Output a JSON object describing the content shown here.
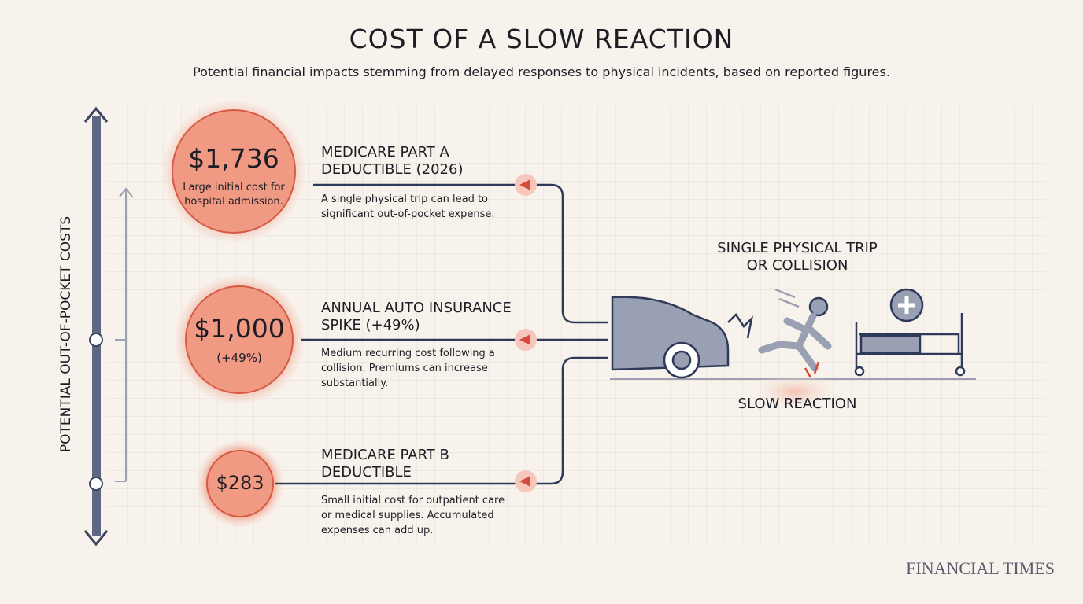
{
  "header": {
    "title": "COST OF A SLOW REACTION",
    "subtitle": "Potential financial impacts stemming from delayed responses to physical incidents, based on reported figures."
  },
  "axis_label": "POTENTIAL OUT-OF-POCKET COSTS",
  "items": [
    {
      "amount": "$1,736",
      "note": "Large initial cost for hospital admission.",
      "heading": "MEDICARE PART A DEDUCTIBLE (2026)",
      "description": "A single physical trip can lead to significant out-of-pocket expense."
    },
    {
      "amount": "$1,000",
      "note": "(+49%)",
      "heading": "ANNUAL AUTO INSURANCE SPIKE (+49%)",
      "description": "Medium recurring cost following a collision. Premiums can increase substantially."
    },
    {
      "amount": "$283",
      "heading": "MEDICARE PART B DEDUCTIBLE",
      "description": "Small initial cost for outpatient care or medical supplies. Accumulated expenses can add up."
    }
  ],
  "scene": {
    "event": "SINGLE PHYSICAL TRIP OR COLLISION",
    "cause": "SLOW REACTION"
  },
  "source": "FINANCIAL TIMES"
}
